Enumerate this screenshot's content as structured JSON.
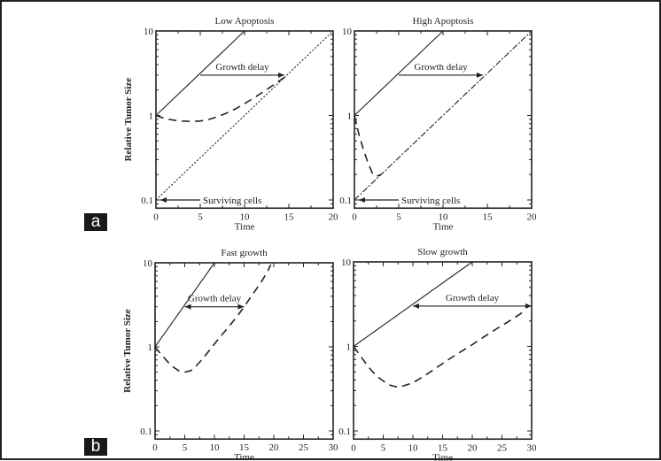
{
  "panel_labels": {
    "a": "a",
    "b": "b"
  },
  "chart_data": [
    {
      "type": "line",
      "group": "a",
      "title": "Low Apoptosis",
      "xlabel": "Time",
      "ylabel": "Relative Tumor Size",
      "xlim": [
        0,
        20
      ],
      "ylim": [
        0.08,
        10
      ],
      "yscale": "log",
      "xticks": [
        0,
        5,
        10,
        15,
        20
      ],
      "yticks": [
        0.1,
        1,
        10
      ],
      "ytick_labels": [
        "0.1",
        "1",
        "10"
      ],
      "series": [
        {
          "style": "solid",
          "x": [
            0,
            10
          ],
          "y": [
            1,
            10
          ]
        },
        {
          "style": "dashed",
          "x": [
            0,
            1,
            2,
            3,
            4,
            5,
            6,
            7,
            8,
            9,
            10,
            11,
            12,
            13,
            14,
            15
          ],
          "y": [
            1,
            0.92,
            0.88,
            0.86,
            0.85,
            0.86,
            0.9,
            0.97,
            1.07,
            1.2,
            1.38,
            1.6,
            1.87,
            2.2,
            2.6,
            3.1
          ]
        },
        {
          "style": "dotted",
          "x": [
            0,
            20
          ],
          "y": [
            0.1,
            10
          ]
        }
      ],
      "annotations": [
        {
          "text": "Growth delay",
          "arrow": "right",
          "x_from": 5,
          "x_to": 14.5,
          "y": 3
        },
        {
          "text": "Surviving cells",
          "arrow": "left",
          "x_from": 5,
          "x_to": 0.5,
          "y": 0.1
        }
      ]
    },
    {
      "type": "line",
      "group": "a",
      "title": "High Apoptosis",
      "xlabel": "Time",
      "ylabel": "",
      "xlim": [
        0,
        20
      ],
      "ylim": [
        0.08,
        10
      ],
      "yscale": "log",
      "xticks": [
        0,
        5,
        10,
        15,
        20
      ],
      "yticks": [
        0.1,
        1,
        10
      ],
      "ytick_labels": [
        "0.1",
        "1",
        "10"
      ],
      "series": [
        {
          "style": "solid",
          "x": [
            0,
            10
          ],
          "y": [
            1,
            10
          ]
        },
        {
          "style": "dashed",
          "x": [
            0,
            0.5,
            1,
            1.5,
            2,
            2.5,
            3
          ],
          "y": [
            1,
            0.6,
            0.4,
            0.28,
            0.21,
            0.19,
            0.2
          ]
        },
        {
          "style": "dashdot",
          "x": [
            0,
            20
          ],
          "y": [
            0.1,
            10
          ]
        }
      ],
      "annotations": [
        {
          "text": "Growth delay",
          "arrow": "right",
          "x_from": 5,
          "x_to": 14.5,
          "y": 3
        },
        {
          "text": "Surviving cells",
          "arrow": "left",
          "x_from": 5,
          "x_to": 0.5,
          "y": 0.1
        }
      ]
    },
    {
      "type": "line",
      "group": "b",
      "title": "Fast growth",
      "xlabel": "Time",
      "ylabel": "Relative Tumor Size",
      "xlim": [
        0,
        30
      ],
      "ylim": [
        0.08,
        10
      ],
      "yscale": "log",
      "xticks": [
        0,
        5,
        10,
        15,
        20,
        25,
        30
      ],
      "yticks": [
        0.1,
        1,
        10
      ],
      "ytick_labels": [
        "0.1",
        "1",
        "10"
      ],
      "series": [
        {
          "style": "solid",
          "x": [
            0,
            10
          ],
          "y": [
            1,
            10
          ]
        },
        {
          "style": "dashed",
          "x": [
            0,
            1,
            2,
            3,
            4,
            5,
            6,
            7,
            8,
            9,
            10,
            11,
            12,
            13,
            14,
            15,
            16,
            17,
            18,
            19,
            19.5
          ],
          "y": [
            1,
            0.82,
            0.68,
            0.58,
            0.52,
            0.5,
            0.52,
            0.6,
            0.72,
            0.88,
            1.08,
            1.32,
            1.6,
            1.95,
            2.4,
            3.0,
            3.8,
            4.8,
            6.1,
            8.0,
            9.5
          ]
        }
      ],
      "annotations": [
        {
          "text": "Growth delay",
          "arrow": "both",
          "x_from": 5,
          "x_to": 15,
          "y": 3
        }
      ]
    },
    {
      "type": "line",
      "group": "b",
      "title": "Slow growth",
      "xlabel": "Time",
      "ylabel": "",
      "xlim": [
        0,
        30
      ],
      "ylim": [
        0.08,
        10
      ],
      "yscale": "log",
      "xticks": [
        0,
        5,
        10,
        15,
        20,
        25,
        30
      ],
      "yticks": [
        0.1,
        1,
        10
      ],
      "ytick_labels": [
        "0.1",
        "1",
        "10"
      ],
      "series": [
        {
          "style": "solid",
          "x": [
            0,
            20
          ],
          "y": [
            1,
            10
          ]
        },
        {
          "style": "dashed",
          "x": [
            0,
            1,
            2,
            3,
            4,
            5,
            6,
            7,
            7.5,
            8,
            10,
            12,
            14,
            16,
            18,
            20,
            22,
            24,
            26,
            28,
            29
          ],
          "y": [
            1,
            0.8,
            0.64,
            0.52,
            0.44,
            0.39,
            0.35,
            0.335,
            0.33,
            0.335,
            0.37,
            0.45,
            0.56,
            0.7,
            0.86,
            1.05,
            1.3,
            1.6,
            1.95,
            2.4,
            2.7
          ]
        }
      ],
      "annotations": [
        {
          "text": "Growth delay",
          "arrow": "both",
          "x_from": 10,
          "x_to": 30,
          "y": 3
        }
      ]
    }
  ]
}
